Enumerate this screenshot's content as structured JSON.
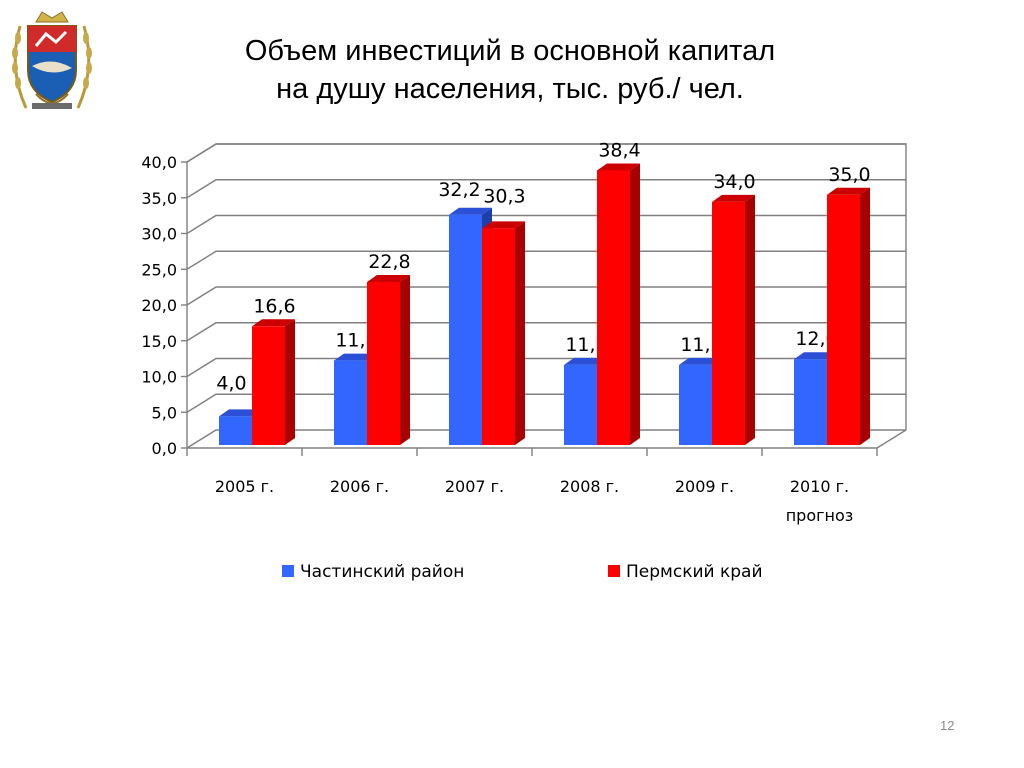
{
  "title": {
    "line1": "Объем инвестиций в основной капитал",
    "line2": "на душу населения,  тыс. руб./ чел."
  },
  "page_number": "12",
  "colors": {
    "series1": "#3366ff",
    "series1_side": "#1f3fa8",
    "series1_top": "#2b4fd6",
    "series2": "#ff0000",
    "series2_side": "#a80000",
    "series2_top": "#cc0000",
    "grid": "#808080"
  },
  "chart_data": {
    "type": "bar",
    "categories": [
      "2005 г.",
      "2006 г.",
      "2007 г.",
      "2008 г.",
      "2009 г.",
      "2010 г. прогноз"
    ],
    "series": [
      {
        "name": "Частинский район",
        "values": [
          4.0,
          11.8,
          32.2,
          11.2,
          11.2,
          12.0
        ],
        "labels": [
          "4,0",
          "11,8",
          "32,2",
          "11,2",
          "11,2",
          "12,0"
        ]
      },
      {
        "name": "Пермский край",
        "values": [
          16.6,
          22.8,
          30.3,
          38.4,
          34.0,
          35.0
        ],
        "labels": [
          "16,6",
          "22,8",
          "30,3",
          "38,4",
          "34,0",
          "35,0"
        ]
      }
    ],
    "ylim": [
      0,
      40
    ],
    "yticks": [
      "0,0",
      "5,0",
      "10,0",
      "15,0",
      "20,0",
      "25,0",
      "30,0",
      "35,0",
      "40,0"
    ],
    "grid": true,
    "legend_position": "bottom",
    "three_d": true
  }
}
